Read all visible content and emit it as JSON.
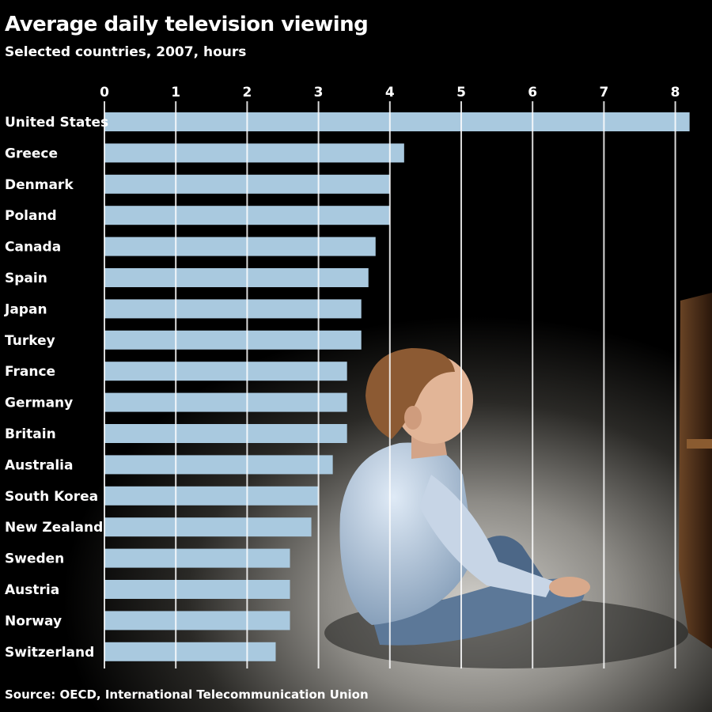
{
  "chart_data": {
    "type": "bar",
    "orientation": "horizontal",
    "title": "Average daily television viewing",
    "subtitle": "Selected countries, 2007, hours",
    "source": "Source: OECD, International Telecommunication Union",
    "categories": [
      "United States",
      "Greece",
      "Denmark",
      "Poland",
      "Canada",
      "Spain",
      "Japan",
      "Turkey",
      "France",
      "Germany",
      "Britain",
      "Australia",
      "South Korea",
      "New Zealand",
      "Sweden",
      "Austria",
      "Norway",
      "Switzerland"
    ],
    "values": [
      8.2,
      4.2,
      4.0,
      4.0,
      3.8,
      3.7,
      3.6,
      3.6,
      3.4,
      3.4,
      3.4,
      3.2,
      3.0,
      2.9,
      2.6,
      2.6,
      2.6,
      2.4
    ],
    "xlim": [
      0,
      8.3
    ],
    "ticks": [
      0,
      1,
      2,
      3,
      4,
      5,
      6,
      7,
      8
    ],
    "grid": true,
    "bar_color": "#a9c9df"
  }
}
